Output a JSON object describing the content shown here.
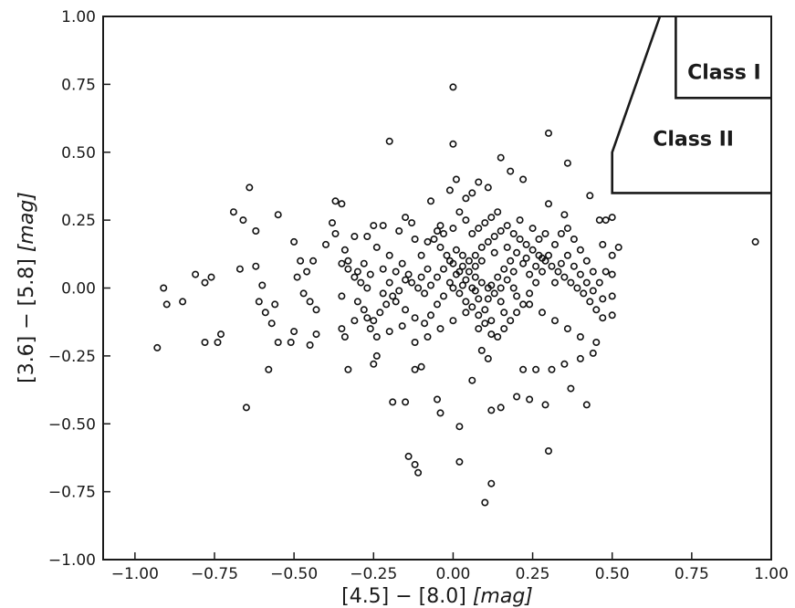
{
  "chart_data": {
    "type": "scatter",
    "xlabel": {
      "main": "[4.5] − [8.0] ",
      "unit": "[mag]"
    },
    "ylabel": {
      "main": "[3.6] − [5.8] ",
      "unit": "[mag]"
    },
    "xlim": [
      -1.1,
      1.0
    ],
    "ylim": [
      -1.0,
      1.0
    ],
    "x_ticks": [
      -1.0,
      -0.75,
      -0.5,
      -0.25,
      0.0,
      0.25,
      0.5,
      0.75,
      1.0
    ],
    "x_tick_labels": [
      "−1.00",
      "−0.75",
      "−0.50",
      "−0.25",
      "0.00",
      "0.25",
      "0.50",
      "0.75",
      "1.00"
    ],
    "y_ticks": [
      -1.0,
      -0.75,
      -0.5,
      -0.25,
      0.0,
      0.25,
      0.5,
      0.75,
      1.0
    ],
    "y_tick_labels": [
      "−1.00",
      "−0.75",
      "−0.50",
      "−0.25",
      "0.00",
      "0.25",
      "0.50",
      "0.75",
      "1.00"
    ],
    "grid": false,
    "regions": [
      {
        "label": "Class I",
        "polygon": [
          [
            0.7,
            1.0
          ],
          [
            0.7,
            0.7
          ],
          [
            1.0,
            0.7
          ]
        ]
      },
      {
        "label": "Class II",
        "polygon": [
          [
            0.65,
            1.0
          ],
          [
            0.5,
            0.5
          ],
          [
            0.5,
            0.35
          ],
          [
            1.0,
            0.35
          ]
        ]
      }
    ],
    "points": [
      [
        -0.93,
        -0.22
      ],
      [
        -0.91,
        0.0
      ],
      [
        -0.9,
        -0.06
      ],
      [
        -0.85,
        -0.05
      ],
      [
        -0.81,
        0.05
      ],
      [
        -0.78,
        0.02
      ],
      [
        -0.76,
        0.04
      ],
      [
        -0.78,
        -0.2
      ],
      [
        -0.74,
        -0.2
      ],
      [
        -0.73,
        -0.17
      ],
      [
        -0.69,
        0.28
      ],
      [
        -0.66,
        0.25
      ],
      [
        -0.64,
        0.37
      ],
      [
        -0.62,
        0.21
      ],
      [
        -0.67,
        0.07
      ],
      [
        -0.62,
        0.08
      ],
      [
        -0.6,
        0.01
      ],
      [
        -0.61,
        -0.05
      ],
      [
        -0.59,
        -0.09
      ],
      [
        -0.57,
        -0.13
      ],
      [
        -0.56,
        -0.06
      ],
      [
        -0.55,
        -0.2
      ],
      [
        -0.51,
        -0.2
      ],
      [
        -0.5,
        -0.16
      ],
      [
        -0.58,
        -0.3
      ],
      [
        -0.65,
        -0.44
      ],
      [
        -0.55,
        0.27
      ],
      [
        -0.5,
        0.17
      ],
      [
        -0.48,
        0.1
      ],
      [
        -0.49,
        0.04
      ],
      [
        -0.46,
        0.06
      ],
      [
        -0.44,
        0.1
      ],
      [
        -0.47,
        -0.02
      ],
      [
        -0.45,
        -0.05
      ],
      [
        -0.43,
        -0.08
      ],
      [
        -0.45,
        -0.21
      ],
      [
        -0.43,
        -0.17
      ],
      [
        -0.4,
        0.16
      ],
      [
        -0.38,
        0.24
      ],
      [
        -0.37,
        0.32
      ],
      [
        -0.35,
        0.31
      ],
      [
        -0.37,
        0.2
      ],
      [
        -0.34,
        0.14
      ],
      [
        -0.31,
        0.19
      ],
      [
        -0.33,
        0.1
      ],
      [
        -0.35,
        -0.03
      ],
      [
        -0.34,
        -0.18
      ],
      [
        -0.33,
        -0.3
      ],
      [
        -0.35,
        -0.15
      ],
      [
        -0.31,
        -0.12
      ],
      [
        -0.27,
        0.19
      ],
      [
        -0.25,
        0.23
      ],
      [
        -0.22,
        0.23
      ],
      [
        -0.27,
        -0.11
      ],
      [
        -0.24,
        -0.25
      ],
      [
        -0.25,
        -0.28
      ],
      [
        -0.2,
        0.54
      ],
      [
        -0.17,
        0.21
      ],
      [
        -0.15,
        0.26
      ],
      [
        -0.13,
        0.24
      ],
      [
        -0.19,
        -0.42
      ],
      [
        -0.15,
        -0.42
      ],
      [
        -0.14,
        -0.62
      ],
      [
        -0.12,
        -0.65
      ],
      [
        -0.11,
        -0.68
      ],
      [
        -0.12,
        -0.3
      ],
      [
        -0.1,
        -0.29
      ],
      [
        -0.07,
        0.32
      ],
      [
        -0.05,
        0.21
      ],
      [
        -0.04,
        0.23
      ],
      [
        0.0,
        0.74
      ],
      [
        0.0,
        0.53
      ],
      [
        0.01,
        0.4
      ],
      [
        -0.05,
        -0.41
      ],
      [
        -0.04,
        -0.46
      ],
      [
        0.02,
        -0.51
      ],
      [
        0.02,
        -0.64
      ],
      [
        0.06,
        -0.34
      ],
      [
        0.09,
        -0.23
      ],
      [
        0.11,
        -0.26
      ],
      [
        0.1,
        -0.79
      ],
      [
        0.12,
        -0.72
      ],
      [
        0.12,
        -0.45
      ],
      [
        0.15,
        -0.44
      ],
      [
        0.2,
        -0.4
      ],
      [
        0.24,
        -0.41
      ],
      [
        0.29,
        -0.43
      ],
      [
        0.3,
        -0.6
      ],
      [
        0.22,
        -0.3
      ],
      [
        0.26,
        -0.3
      ],
      [
        0.31,
        -0.3
      ],
      [
        0.35,
        -0.28
      ],
      [
        0.37,
        -0.37
      ],
      [
        0.42,
        -0.43
      ],
      [
        0.4,
        -0.26
      ],
      [
        0.45,
        -0.2
      ],
      [
        0.44,
        -0.24
      ],
      [
        0.15,
        0.48
      ],
      [
        0.18,
        0.43
      ],
      [
        0.22,
        0.4
      ],
      [
        0.3,
        0.57
      ],
      [
        0.36,
        0.46
      ],
      [
        0.3,
        0.31
      ],
      [
        0.35,
        0.27
      ],
      [
        0.43,
        0.34
      ],
      [
        0.46,
        0.25
      ],
      [
        0.48,
        0.25
      ],
      [
        0.5,
        0.26
      ],
      [
        0.5,
        0.05
      ],
      [
        0.5,
        -0.03
      ],
      [
        0.5,
        -0.1
      ],
      [
        0.47,
        -0.11
      ],
      [
        0.95,
        0.17
      ],
      [
        0.52,
        0.15
      ],
      [
        0.5,
        0.12
      ],
      [
        0.47,
        0.16
      ],
      [
        0.08,
        0.39
      ],
      [
        0.11,
        0.37
      ],
      [
        0.06,
        0.35
      ],
      [
        -0.01,
        0.36
      ],
      [
        0.04,
        0.33
      ],
      [
        0.02,
        0.28
      ],
      [
        -0.12,
        0.18
      ],
      [
        -0.08,
        0.17
      ],
      [
        -0.1,
        0.12
      ],
      [
        -0.2,
        0.12
      ],
      [
        -0.24,
        0.15
      ],
      [
        -0.28,
        0.09
      ],
      [
        -0.3,
        0.06
      ],
      [
        -0.26,
        0.05
      ],
      [
        -0.22,
        0.07
      ],
      [
        -0.18,
        0.06
      ],
      [
        -0.16,
        0.09
      ],
      [
        -0.14,
        0.05
      ],
      [
        -0.2,
        0.02
      ],
      [
        -0.22,
        -0.02
      ],
      [
        -0.18,
        -0.05
      ],
      [
        -0.15,
        -0.08
      ],
      [
        -0.12,
        -0.11
      ],
      [
        -0.09,
        -0.13
      ],
      [
        -0.07,
        -0.1
      ],
      [
        -0.05,
        -0.06
      ],
      [
        -0.03,
        -0.03
      ],
      [
        -0.01,
        0.02
      ],
      [
        0.01,
        0.05
      ],
      [
        0.03,
        0.08
      ],
      [
        0.05,
        0.1
      ],
      [
        0.07,
        0.12
      ],
      [
        0.09,
        0.15
      ],
      [
        0.11,
        0.17
      ],
      [
        0.13,
        0.19
      ],
      [
        0.15,
        0.21
      ],
      [
        0.17,
        0.23
      ],
      [
        0.19,
        0.2
      ],
      [
        0.21,
        0.18
      ],
      [
        0.23,
        0.16
      ],
      [
        0.25,
        0.14
      ],
      [
        0.27,
        0.12
      ],
      [
        0.29,
        0.1
      ],
      [
        0.31,
        0.08
      ],
      [
        0.33,
        0.06
      ],
      [
        0.35,
        0.04
      ],
      [
        0.37,
        0.02
      ],
      [
        0.39,
        0.0
      ],
      [
        0.41,
        -0.02
      ],
      [
        0.43,
        -0.05
      ],
      [
        0.45,
        -0.08
      ],
      [
        0.44,
        0.06
      ],
      [
        0.42,
        0.1
      ],
      [
        0.4,
        0.14
      ],
      [
        0.38,
        0.18
      ],
      [
        0.36,
        0.22
      ],
      [
        0.34,
        0.2
      ],
      [
        0.32,
        0.16
      ],
      [
        0.3,
        0.12
      ],
      [
        0.28,
        0.06
      ],
      [
        0.26,
        0.02
      ],
      [
        0.24,
        -0.02
      ],
      [
        0.22,
        -0.06
      ],
      [
        0.2,
        -0.09
      ],
      [
        0.18,
        -0.12
      ],
      [
        0.16,
        -0.15
      ],
      [
        0.14,
        -0.18
      ],
      [
        0.12,
        -0.12
      ],
      [
        0.1,
        -0.08
      ],
      [
        0.08,
        -0.04
      ],
      [
        0.06,
        0.0
      ],
      [
        0.04,
        0.03
      ],
      [
        0.02,
        0.06
      ],
      [
        0.0,
        0.09
      ],
      [
        -0.02,
        0.12
      ],
      [
        -0.04,
        0.15
      ],
      [
        -0.06,
        0.18
      ],
      [
        -0.08,
        0.07
      ],
      [
        -0.1,
        0.04
      ],
      [
        0.0,
        0.0
      ],
      [
        0.02,
        -0.02
      ],
      [
        0.04,
        -0.05
      ],
      [
        0.06,
        -0.07
      ],
      [
        0.08,
        -0.1
      ],
      [
        0.1,
        -0.13
      ],
      [
        0.12,
        0.01
      ],
      [
        0.14,
        0.04
      ],
      [
        0.16,
        0.07
      ],
      [
        0.18,
        0.1
      ],
      [
        0.2,
        0.13
      ],
      [
        0.22,
        0.09
      ],
      [
        0.24,
        0.05
      ],
      [
        0.26,
        0.08
      ],
      [
        0.28,
        0.11
      ],
      [
        0.05,
        0.06
      ],
      [
        0.07,
        0.04
      ],
      [
        0.09,
        0.02
      ],
      [
        0.11,
        0.0
      ],
      [
        0.13,
        -0.02
      ],
      [
        0.15,
        0.0
      ],
      [
        0.17,
        0.03
      ],
      [
        0.19,
        0.06
      ],
      [
        0.07,
        0.08
      ],
      [
        0.09,
        0.1
      ],
      [
        0.03,
        0.12
      ],
      [
        0.01,
        0.14
      ],
      [
        -0.01,
        0.1
      ],
      [
        -0.03,
        0.07
      ],
      [
        -0.05,
        0.04
      ],
      [
        -0.07,
        0.01
      ],
      [
        -0.09,
        -0.02
      ],
      [
        -0.11,
        0.0
      ],
      [
        -0.13,
        0.02
      ],
      [
        -0.15,
        0.03
      ],
      [
        -0.17,
        -0.01
      ],
      [
        -0.19,
        -0.03
      ],
      [
        -0.21,
        -0.06
      ],
      [
        -0.23,
        -0.09
      ],
      [
        -0.25,
        -0.12
      ],
      [
        -0.27,
        0.0
      ],
      [
        -0.29,
        0.02
      ],
      [
        -0.31,
        0.04
      ],
      [
        -0.33,
        0.07
      ],
      [
        -0.35,
        0.09
      ],
      [
        -0.3,
        -0.05
      ],
      [
        -0.28,
        -0.08
      ],
      [
        -0.26,
        -0.15
      ],
      [
        -0.24,
        -0.18
      ],
      [
        -0.2,
        -0.16
      ],
      [
        -0.16,
        -0.14
      ],
      [
        -0.12,
        -0.2
      ],
      [
        -0.08,
        -0.18
      ],
      [
        -0.04,
        -0.15
      ],
      [
        0.0,
        -0.12
      ],
      [
        0.04,
        -0.09
      ],
      [
        0.08,
        -0.15
      ],
      [
        0.12,
        -0.17
      ],
      [
        0.16,
        -0.09
      ],
      [
        0.2,
        -0.03
      ],
      [
        0.24,
        -0.06
      ],
      [
        0.28,
        -0.09
      ],
      [
        0.32,
        -0.12
      ],
      [
        0.36,
        -0.15
      ],
      [
        0.4,
        -0.18
      ],
      [
        0.32,
        0.02
      ],
      [
        0.34,
        0.09
      ],
      [
        0.36,
        0.12
      ],
      [
        0.38,
        0.08
      ],
      [
        0.4,
        0.05
      ],
      [
        0.42,
        0.02
      ],
      [
        0.44,
        -0.01
      ],
      [
        0.46,
        0.02
      ],
      [
        0.48,
        0.06
      ],
      [
        0.47,
        -0.04
      ],
      [
        0.06,
        0.2
      ],
      [
        0.08,
        0.22
      ],
      [
        0.1,
        0.24
      ],
      [
        0.12,
        0.26
      ],
      [
        0.14,
        0.28
      ],
      [
        0.04,
        0.25
      ],
      [
        0.0,
        0.22
      ],
      [
        -0.03,
        0.2
      ],
      [
        0.13,
        0.13
      ],
      [
        0.17,
        0.15
      ],
      [
        0.21,
        0.25
      ],
      [
        0.25,
        0.22
      ],
      [
        0.27,
        0.18
      ],
      [
        0.29,
        0.2
      ],
      [
        0.23,
        0.11
      ],
      [
        0.19,
        0.0
      ],
      [
        0.15,
        -0.05
      ],
      [
        0.11,
        -0.04
      ],
      [
        0.07,
        -0.01
      ],
      [
        0.03,
        0.01
      ]
    ]
  }
}
